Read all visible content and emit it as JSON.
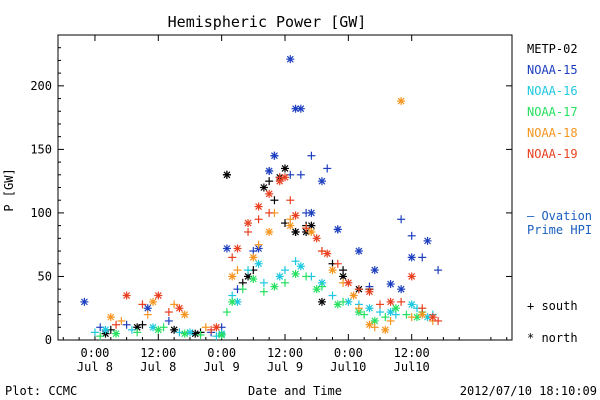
{
  "chart_data": {
    "type": "scatter",
    "title": "Hemispheric Power [GW]",
    "ylabel": "P [GW]",
    "xlabel": "Date and Time",
    "ylim": [
      0,
      240
    ],
    "yticks": [
      0,
      50,
      100,
      150,
      200
    ],
    "xlim": [
      -7,
      79
    ],
    "x_unit": "hours since 2012-07-08 00:00",
    "xticks": [
      {
        "x": 0,
        "line1": "0:00",
        "line2": "Jul 8"
      },
      {
        "x": 12,
        "line1": "12:00",
        "line2": "Jul 8"
      },
      {
        "x": 24,
        "line1": "0:00",
        "line2": "Jul 9"
      },
      {
        "x": 36,
        "line1": "12:00",
        "line2": "Jul 9"
      },
      {
        "x": 48,
        "line1": "0:00",
        "line2": "Jul10"
      },
      {
        "x": 60,
        "line1": "12:00",
        "line2": "Jul10"
      }
    ],
    "legend_position": "right",
    "series": [
      {
        "name": "METP-02",
        "color": "#000000",
        "south": [
          [
            3,
            8
          ],
          [
            9,
            12
          ],
          [
            20,
            6
          ],
          [
            25,
            130
          ],
          [
            28,
            45
          ],
          [
            30,
            55
          ],
          [
            33,
            125
          ],
          [
            34,
            110
          ],
          [
            36,
            92
          ],
          [
            38,
            85
          ],
          [
            40,
            90
          ],
          [
            45,
            60
          ],
          [
            47,
            55
          ],
          [
            52,
            40
          ]
        ],
        "north": [
          [
            2,
            5
          ],
          [
            8,
            10
          ],
          [
            15,
            8
          ],
          [
            19,
            5
          ],
          [
            25,
            130
          ],
          [
            29,
            50
          ],
          [
            32,
            120
          ],
          [
            35,
            128
          ],
          [
            36,
            135
          ],
          [
            38,
            85
          ],
          [
            40,
            85
          ],
          [
            41,
            90
          ],
          [
            43,
            30
          ],
          [
            47,
            50
          ],
          [
            50,
            40
          ]
        ]
      },
      {
        "name": "NOAA-15",
        "color": "#1d3fbf",
        "south": [
          [
            1,
            10
          ],
          [
            6,
            12
          ],
          [
            14,
            15
          ],
          [
            22,
            6
          ],
          [
            24,
            10
          ],
          [
            27,
            40
          ],
          [
            30,
            70
          ],
          [
            33,
            133
          ],
          [
            34,
            145
          ],
          [
            37,
            130
          ],
          [
            39,
            130
          ],
          [
            40,
            100
          ],
          [
            41,
            145
          ],
          [
            44,
            135
          ],
          [
            46,
            87
          ],
          [
            52,
            42
          ],
          [
            58,
            95
          ],
          [
            60,
            82
          ],
          [
            62,
            65
          ],
          [
            65,
            55
          ]
        ],
        "north": [
          [
            -2,
            30
          ],
          [
            10,
            25
          ],
          [
            25,
            72
          ],
          [
            31,
            72
          ],
          [
            33,
            133
          ],
          [
            34,
            145
          ],
          [
            37,
            221
          ],
          [
            38,
            182
          ],
          [
            39,
            182
          ],
          [
            41,
            100
          ],
          [
            43,
            125
          ],
          [
            46,
            87
          ],
          [
            50,
            70
          ],
          [
            53,
            55
          ],
          [
            56,
            44
          ],
          [
            58,
            40
          ],
          [
            60,
            65
          ],
          [
            63,
            78
          ]
        ]
      },
      {
        "name": "NOAA-16",
        "color": "#1ec8e0",
        "south": [
          [
            0,
            6
          ],
          [
            7,
            8
          ],
          [
            16,
            6
          ],
          [
            23,
            3
          ],
          [
            26,
            35
          ],
          [
            29,
            55
          ],
          [
            32,
            45
          ],
          [
            36,
            55
          ],
          [
            38,
            62
          ],
          [
            41,
            50
          ],
          [
            45,
            35
          ],
          [
            50,
            28
          ],
          [
            54,
            22
          ],
          [
            57,
            20
          ],
          [
            61,
            25
          ],
          [
            64,
            20
          ]
        ],
        "north": [
          [
            2,
            8
          ],
          [
            11,
            10
          ],
          [
            18,
            6
          ],
          [
            24,
            5
          ],
          [
            27,
            30
          ],
          [
            31,
            60
          ],
          [
            35,
            50
          ],
          [
            39,
            58
          ],
          [
            43,
            45
          ],
          [
            48,
            30
          ],
          [
            52,
            25
          ],
          [
            56,
            22
          ],
          [
            60,
            28
          ],
          [
            63,
            18
          ]
        ]
      },
      {
        "name": "NOAA-17",
        "color": "#26e060",
        "south": [
          [
            1,
            3
          ],
          [
            8,
            6
          ],
          [
            13,
            10
          ],
          [
            20,
            4
          ],
          [
            25,
            22
          ],
          [
            28,
            40
          ],
          [
            32,
            38
          ],
          [
            36,
            45
          ],
          [
            40,
            50
          ],
          [
            43,
            42
          ],
          [
            47,
            30
          ],
          [
            51,
            20
          ],
          [
            55,
            18
          ],
          [
            59,
            20
          ],
          [
            62,
            22
          ]
        ],
        "north": [
          [
            4,
            5
          ],
          [
            12,
            8
          ],
          [
            17,
            5
          ],
          [
            24,
            4
          ],
          [
            26,
            30
          ],
          [
            30,
            48
          ],
          [
            34,
            42
          ],
          [
            38,
            52
          ],
          [
            42,
            40
          ],
          [
            46,
            28
          ],
          [
            50,
            22
          ],
          [
            53,
            15
          ],
          [
            57,
            25
          ],
          [
            61,
            18
          ]
        ]
      },
      {
        "name": "NOAA-18",
        "color": "#f59520",
        "south": [
          [
            5,
            15
          ],
          [
            10,
            20
          ],
          [
            15,
            28
          ],
          [
            21,
            10
          ],
          [
            27,
            55
          ],
          [
            31,
            75
          ],
          [
            34,
            100
          ],
          [
            37,
            95
          ],
          [
            40,
            88
          ],
          [
            43,
            70
          ],
          [
            47,
            45
          ],
          [
            50,
            25
          ],
          [
            53,
            10
          ],
          [
            56,
            15
          ],
          [
            60,
            18
          ],
          [
            64,
            15
          ]
        ],
        "north": [
          [
            3,
            18
          ],
          [
            11,
            30
          ],
          [
            17,
            20
          ],
          [
            26,
            50
          ],
          [
            30,
            65
          ],
          [
            33,
            85
          ],
          [
            37,
            90
          ],
          [
            41,
            85
          ],
          [
            45,
            55
          ],
          [
            49,
            35
          ],
          [
            52,
            12
          ],
          [
            55,
            8
          ],
          [
            58,
            188
          ],
          [
            62,
            20
          ]
        ]
      },
      {
        "name": "NOAA-19",
        "color": "#e84020",
        "south": [
          [
            4,
            12
          ],
          [
            9,
            28
          ],
          [
            14,
            22
          ],
          [
            22,
            8
          ],
          [
            26,
            65
          ],
          [
            29,
            85
          ],
          [
            31,
            95
          ],
          [
            33,
            100
          ],
          [
            35,
            128
          ],
          [
            37,
            110
          ],
          [
            40,
            88
          ],
          [
            43,
            70
          ],
          [
            46,
            60
          ],
          [
            50,
            40
          ],
          [
            54,
            28
          ],
          [
            58,
            30
          ],
          [
            62,
            25
          ],
          [
            65,
            15
          ]
        ],
        "north": [
          [
            6,
            35
          ],
          [
            12,
            35
          ],
          [
            16,
            25
          ],
          [
            23,
            10
          ],
          [
            27,
            72
          ],
          [
            29,
            92
          ],
          [
            31,
            105
          ],
          [
            33,
            115
          ],
          [
            35,
            125
          ],
          [
            36,
            128
          ],
          [
            38,
            98
          ],
          [
            42,
            80
          ],
          [
            44,
            68
          ],
          [
            48,
            45
          ],
          [
            52,
            38
          ],
          [
            56,
            30
          ],
          [
            60,
            50
          ],
          [
            64,
            18
          ]
        ]
      }
    ],
    "ovation": {
      "label_line1": "— Ovation",
      "label_line2": "Prime HPI",
      "color": "#1a5fbf"
    },
    "marker_legend": {
      "south": "+ south",
      "north": "* north"
    }
  },
  "footer": {
    "left": "Plot: CCMC",
    "right": "2012/07/10 18:10:09"
  }
}
